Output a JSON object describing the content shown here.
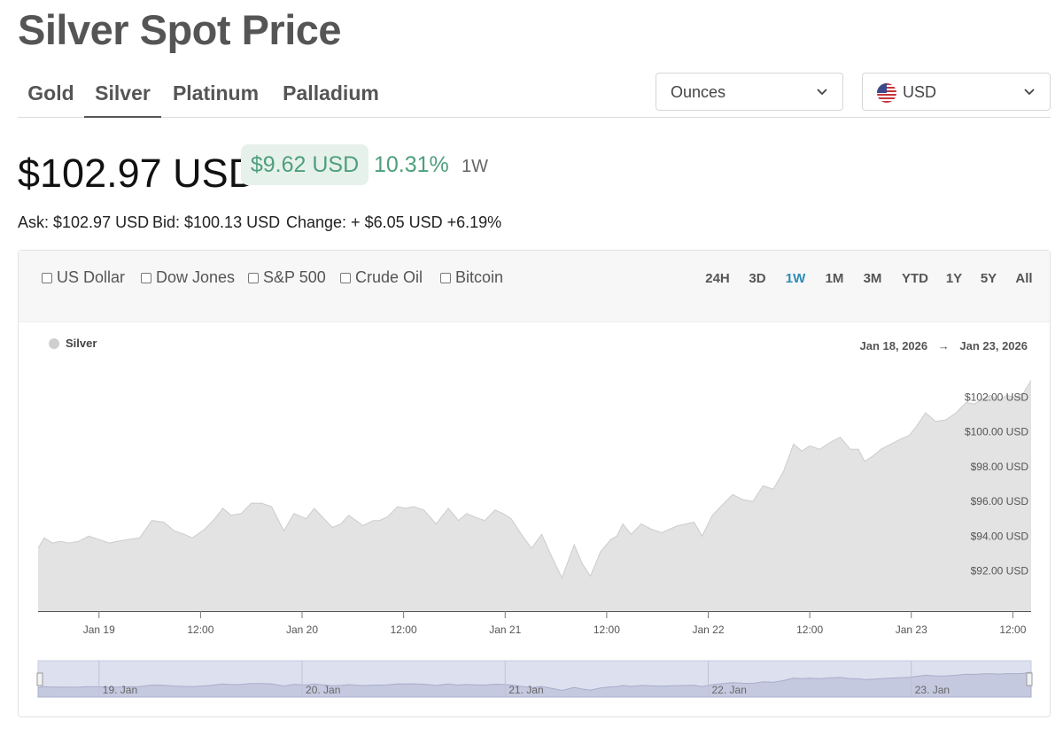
{
  "page": {
    "title": "Silver Spot Price"
  },
  "metal_tabs": [
    {
      "label": "Gold",
      "active": false
    },
    {
      "label": "Silver",
      "active": true
    },
    {
      "label": "Platinum",
      "active": false
    },
    {
      "label": "Palladium",
      "active": false
    }
  ],
  "unit_select": {
    "value": "Ounces",
    "icon": "chevron-down-icon"
  },
  "currency_select": {
    "value": "USD",
    "icon": "us-flag-icon"
  },
  "summary": {
    "price": "$102.97 USD",
    "change_amount": "$9.62 USD",
    "change_percent": "10.31%",
    "period": "1W",
    "ask": "Ask: $102.97 USD",
    "bid": "Bid: $100.13 USD",
    "change": "Change: + $6.05 USD +6.19%"
  },
  "colors": {
    "accent": "#2e8ab8",
    "positive": "#4e9f7d",
    "positive_bg": "#e7f1ec",
    "area_fill": "#e3e3e3",
    "navigator_fill": "#dde0ee"
  },
  "compare_options": [
    "US Dollar",
    "Dow Jones",
    "S&P 500",
    "Crude Oil",
    "Bitcoin"
  ],
  "ranges": [
    {
      "label": "24H",
      "active": false
    },
    {
      "label": "3D",
      "active": false
    },
    {
      "label": "1W",
      "active": true
    },
    {
      "label": "1M",
      "active": false
    },
    {
      "label": "3M",
      "active": false
    },
    {
      "label": "YTD",
      "active": false
    },
    {
      "label": "1Y",
      "active": false
    },
    {
      "label": "5Y",
      "active": false
    },
    {
      "label": "All",
      "active": false
    }
  ],
  "date_range": {
    "from": "Jan 18, 2026",
    "arrow": "→",
    "to": "Jan 23, 2026"
  },
  "chart_data": {
    "type": "area",
    "legend": [
      "Silver"
    ],
    "legend_position": "top-left",
    "grid": false,
    "x_ticks": [
      {
        "label": "Jan 19",
        "t": 0.5
      },
      {
        "label": "12:00",
        "t": 1.0
      },
      {
        "label": "Jan 20",
        "t": 1.5
      },
      {
        "label": "12:00",
        "t": 2.0
      },
      {
        "label": "Jan 21",
        "t": 2.5
      },
      {
        "label": "12:00",
        "t": 3.0
      },
      {
        "label": "Jan 22",
        "t": 3.5
      },
      {
        "label": "12:00",
        "t": 4.0
      },
      {
        "label": "Jan 23",
        "t": 4.5
      },
      {
        "label": "12:00",
        "t": 5.0
      }
    ],
    "y_ticks": [
      "$92.00 USD",
      "$94.00 USD",
      "$96.00 USD",
      "$98.00 USD",
      "$100.00 USD",
      "$102.00 USD"
    ],
    "y_tick_values": [
      92,
      94,
      96,
      98,
      100,
      102
    ],
    "ylim": [
      89.65,
      102.1
    ],
    "x_domain": [
      0.2,
      5.09
    ],
    "series": [
      {
        "name": "Silver",
        "x": [
          0.2,
          0.23,
          0.27,
          0.31,
          0.35,
          0.4,
          0.45,
          0.5,
          0.55,
          0.59,
          0.64,
          0.7,
          0.76,
          0.82,
          0.87,
          0.92,
          0.96,
          1.02,
          1.07,
          1.11,
          1.15,
          1.2,
          1.25,
          1.3,
          1.35,
          1.41,
          1.46,
          1.52,
          1.56,
          1.6,
          1.65,
          1.69,
          1.73,
          1.8,
          1.85,
          1.88,
          1.92,
          1.97,
          2.01,
          2.05,
          2.1,
          2.16,
          2.22,
          2.27,
          2.31,
          2.35,
          2.4,
          2.45,
          2.49,
          2.53,
          2.58,
          2.63,
          2.68,
          2.73,
          2.78,
          2.84,
          2.88,
          2.92,
          2.97,
          3.02,
          3.05,
          3.08,
          3.12,
          3.17,
          3.22,
          3.27,
          3.31,
          3.35,
          3.39,
          3.43,
          3.47,
          3.52,
          3.57,
          3.62,
          3.67,
          3.72,
          3.77,
          3.82,
          3.87,
          3.92,
          3.96,
          4.0,
          4.05,
          4.1,
          4.15,
          4.2,
          4.24,
          4.27,
          4.31,
          4.35,
          4.4,
          4.45,
          4.49,
          4.53,
          4.57,
          4.62,
          4.67,
          4.72,
          4.77,
          4.81,
          4.85,
          4.89,
          4.93,
          4.97,
          5.01,
          5.05,
          5.09
        ],
        "values": [
          93.3,
          93.9,
          93.6,
          93.7,
          93.6,
          93.7,
          94.0,
          93.8,
          93.6,
          93.7,
          93.8,
          93.9,
          94.9,
          94.8,
          94.3,
          94.1,
          93.9,
          94.4,
          95.0,
          95.6,
          95.2,
          95.3,
          95.9,
          95.9,
          95.7,
          94.3,
          95.3,
          95.0,
          95.6,
          95.1,
          94.5,
          94.7,
          95.2,
          94.6,
          94.9,
          94.9,
          95.1,
          95.7,
          95.6,
          95.7,
          95.5,
          94.7,
          95.6,
          94.9,
          95.3,
          95.1,
          94.9,
          95.5,
          95.3,
          95.0,
          94.1,
          93.3,
          94.1,
          92.8,
          91.6,
          93.5,
          92.4,
          91.7,
          93.1,
          93.8,
          94.0,
          94.7,
          94.1,
          94.7,
          94.4,
          94.2,
          94.4,
          94.6,
          94.7,
          94.8,
          94.0,
          95.2,
          95.8,
          96.4,
          96.1,
          96.0,
          96.9,
          96.7,
          97.7,
          99.3,
          98.9,
          99.2,
          99.0,
          99.4,
          99.7,
          99.0,
          99.0,
          98.3,
          98.6,
          99.0,
          99.3,
          99.6,
          99.8,
          100.4,
          101.1,
          100.6,
          100.7,
          101.1,
          101.7,
          101.6,
          101.9,
          102.1,
          101.8,
          102.1,
          102.0,
          102.2,
          102.97
        ]
      }
    ],
    "navigator_labels": [
      {
        "label": "19. Jan",
        "t": 0.5
      },
      {
        "label": "20. Jan",
        "t": 1.5
      },
      {
        "label": "21. Jan",
        "t": 2.5
      },
      {
        "label": "22. Jan",
        "t": 3.5
      },
      {
        "label": "23. Jan",
        "t": 4.5
      }
    ]
  }
}
